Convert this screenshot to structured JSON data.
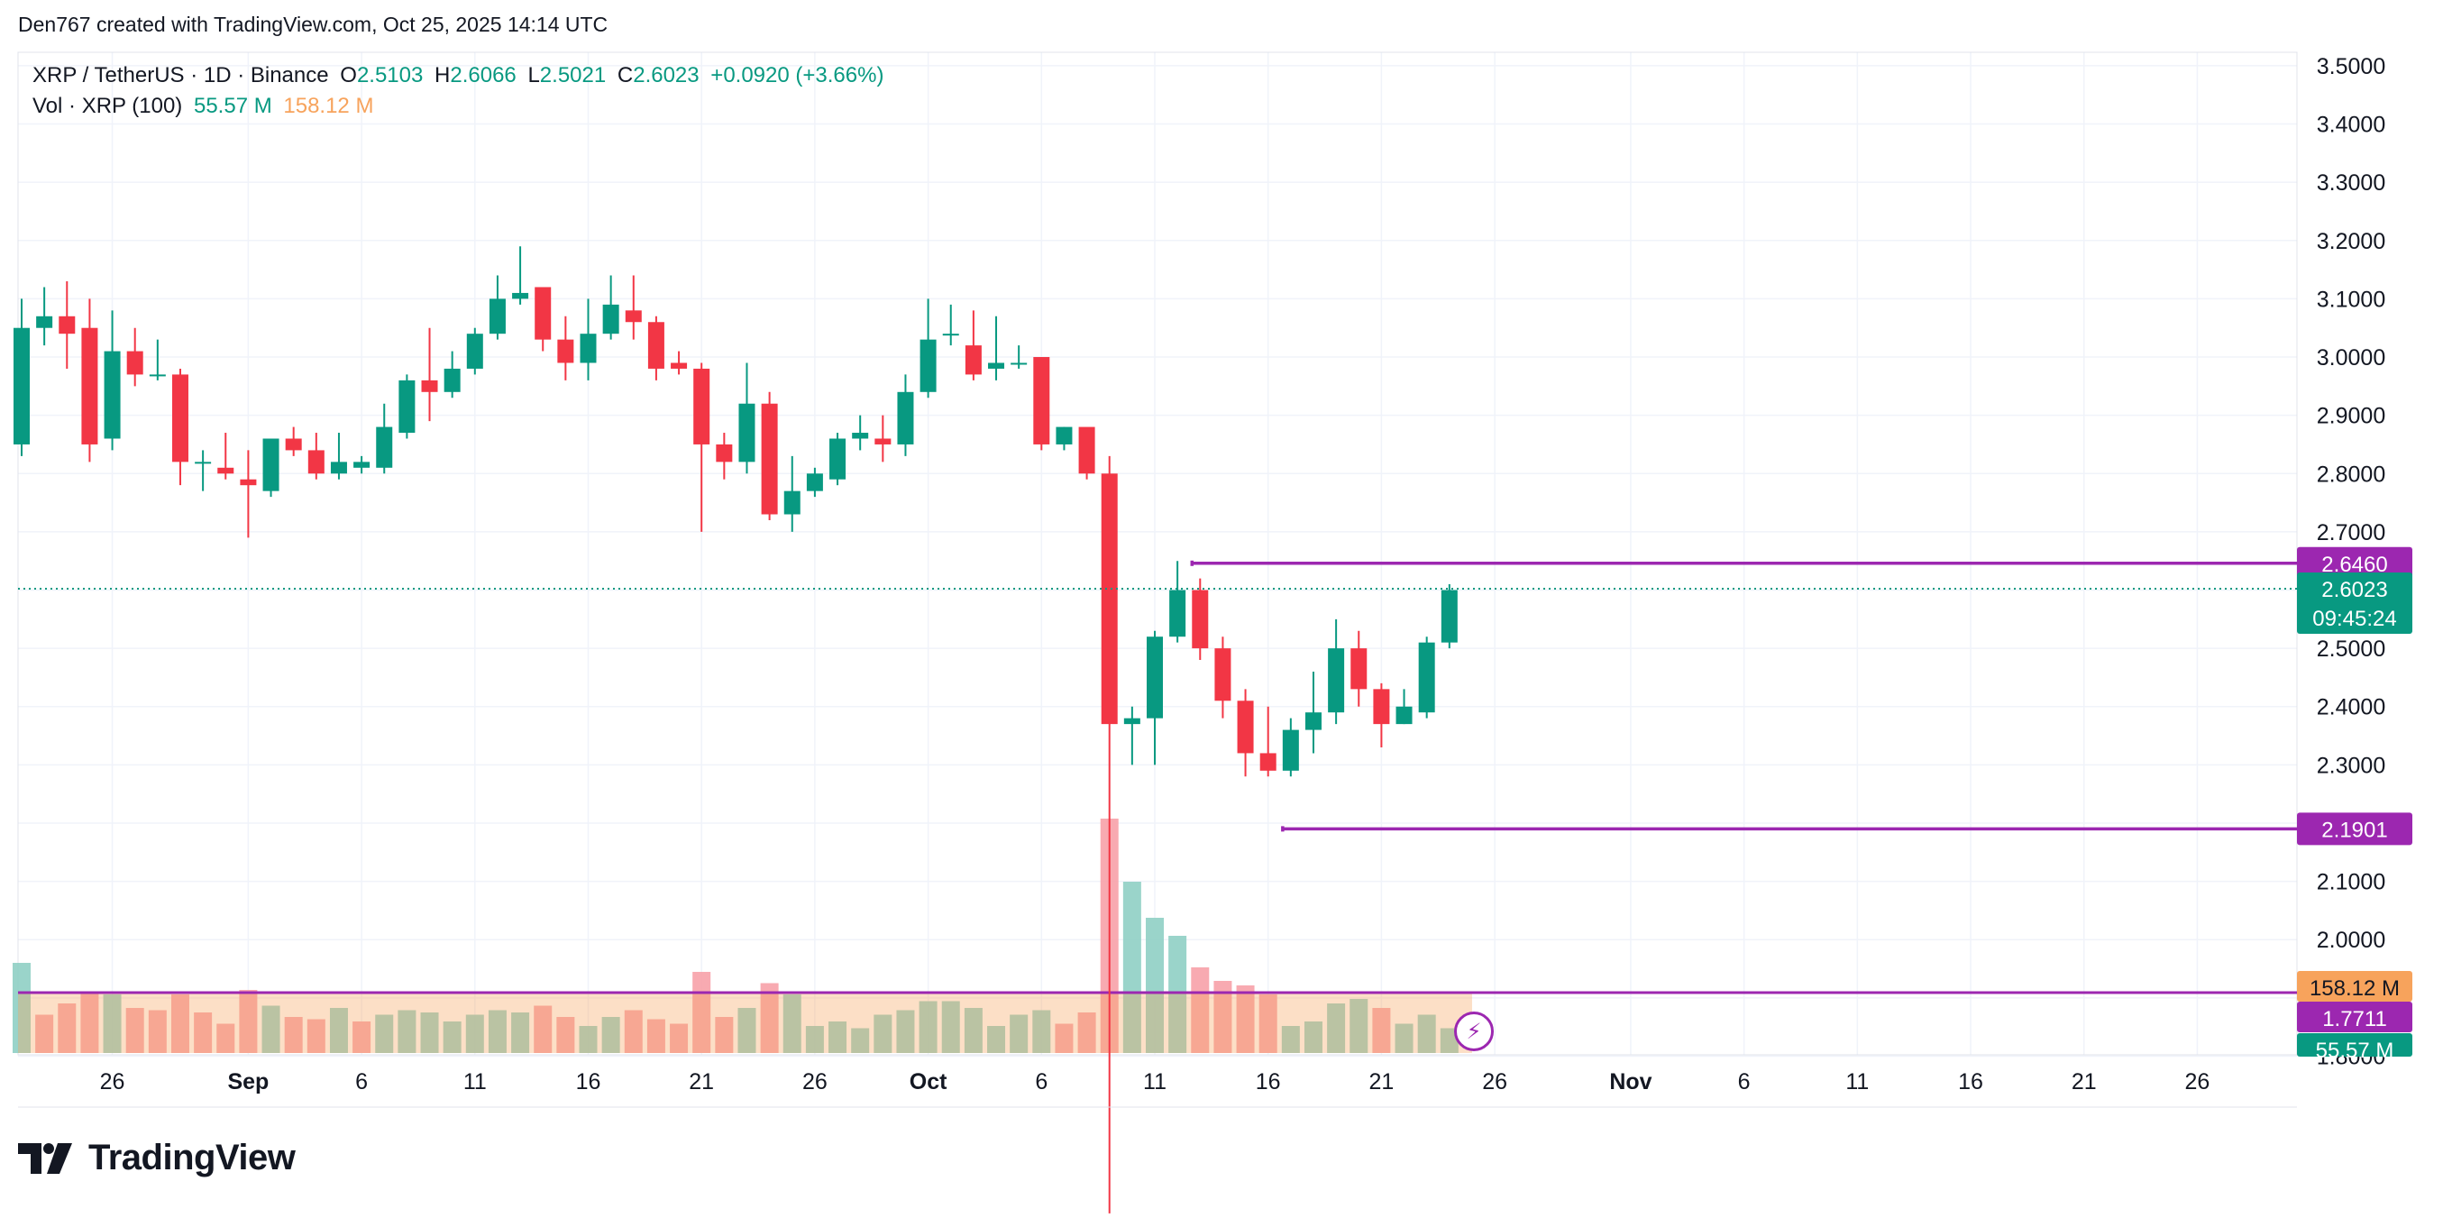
{
  "attribution": "Den767 created with TradingView.com, Oct 25, 2025 14:14 UTC",
  "legend": {
    "symbol": "XRP / TetherUS · 1D · Binance",
    "o_label": "O",
    "o_value": "2.5103",
    "h_label": "H",
    "h_value": "2.6066",
    "l_label": "L",
    "l_value": "2.5021",
    "c_label": "C",
    "c_value": "2.6023",
    "change": "+0.0920 (+3.66%)",
    "vol_label": "Vol · XRP (100)",
    "vol_value": "55.57 M",
    "vol_ma_value": "158.12 M"
  },
  "brand": "TradingView",
  "colors": {
    "up": "#089981",
    "down": "#f23645",
    "level": "#9c27b0",
    "vol_ma": "#f7a35c",
    "grid": "#f0f3fa"
  },
  "chart_data": {
    "type": "candlestick",
    "ylim": [
      1.81,
      3.52
    ],
    "y_ticks": [
      "3.5000",
      "3.4000",
      "3.3000",
      "3.2000",
      "3.1000",
      "3.0000",
      "2.9000",
      "2.8000",
      "2.7000",
      "2.6000",
      "2.5000",
      "2.4000",
      "2.3000",
      "2.2000",
      "2.1000",
      "2.0000",
      "1.9000",
      "1.8000"
    ],
    "x_ticks": [
      {
        "day": 4,
        "label": "26"
      },
      {
        "day": 10,
        "label": "Sep",
        "bold": true
      },
      {
        "day": 15,
        "label": "6"
      },
      {
        "day": 20,
        "label": "11"
      },
      {
        "day": 25,
        "label": "16"
      },
      {
        "day": 30,
        "label": "21"
      },
      {
        "day": 35,
        "label": "26"
      },
      {
        "day": 40,
        "label": "Oct",
        "bold": true
      },
      {
        "day": 45,
        "label": "6"
      },
      {
        "day": 50,
        "label": "11"
      },
      {
        "day": 55,
        "label": "16"
      },
      {
        "day": 60,
        "label": "21"
      },
      {
        "day": 65,
        "label": "26"
      },
      {
        "day": 71,
        "label": "Nov",
        "bold": true
      },
      {
        "day": 76,
        "label": "6"
      },
      {
        "day": 81,
        "label": "11"
      },
      {
        "day": 86,
        "label": "16"
      },
      {
        "day": 91,
        "label": "21"
      },
      {
        "day": 96,
        "label": "26"
      }
    ],
    "candles": [
      [
        2.85,
        3.1,
        3.05,
        2.83
      ],
      [
        3.05,
        3.12,
        3.07,
        3.02
      ],
      [
        3.07,
        3.13,
        3.04,
        2.98
      ],
      [
        3.05,
        3.1,
        2.85,
        2.82
      ],
      [
        2.86,
        3.08,
        3.01,
        2.84
      ],
      [
        3.01,
        3.05,
        2.97,
        2.95
      ],
      [
        2.97,
        3.03,
        2.97,
        2.96
      ],
      [
        2.97,
        2.98,
        2.82,
        2.78
      ],
      [
        2.82,
        2.84,
        2.82,
        2.77
      ],
      [
        2.81,
        2.87,
        2.8,
        2.79
      ],
      [
        2.79,
        2.84,
        2.78,
        2.69
      ],
      [
        2.77,
        2.86,
        2.86,
        2.76
      ],
      [
        2.86,
        2.88,
        2.84,
        2.83
      ],
      [
        2.84,
        2.87,
        2.8,
        2.79
      ],
      [
        2.8,
        2.87,
        2.82,
        2.79
      ],
      [
        2.81,
        2.83,
        2.82,
        2.8
      ],
      [
        2.81,
        2.92,
        2.88,
        2.8
      ],
      [
        2.87,
        2.97,
        2.96,
        2.86
      ],
      [
        2.96,
        3.05,
        2.94,
        2.89
      ],
      [
        2.94,
        3.01,
        2.98,
        2.93
      ],
      [
        2.98,
        3.05,
        3.04,
        2.97
      ],
      [
        3.04,
        3.14,
        3.1,
        3.03
      ],
      [
        3.1,
        3.19,
        3.11,
        3.09
      ],
      [
        3.12,
        3.12,
        3.03,
        3.01
      ],
      [
        3.03,
        3.07,
        2.99,
        2.96
      ],
      [
        2.99,
        3.1,
        3.04,
        2.96
      ],
      [
        3.04,
        3.14,
        3.09,
        3.03
      ],
      [
        3.08,
        3.14,
        3.06,
        3.03
      ],
      [
        3.06,
        3.07,
        2.98,
        2.96
      ],
      [
        2.99,
        3.01,
        2.98,
        2.97
      ],
      [
        2.98,
        2.99,
        2.85,
        2.7
      ],
      [
        2.85,
        2.87,
        2.82,
        2.79
      ],
      [
        2.82,
        2.99,
        2.92,
        2.8
      ],
      [
        2.92,
        2.94,
        2.73,
        2.72
      ],
      [
        2.73,
        2.83,
        2.77,
        2.7
      ],
      [
        2.77,
        2.81,
        2.8,
        2.76
      ],
      [
        2.79,
        2.87,
        2.86,
        2.78
      ],
      [
        2.86,
        2.9,
        2.87,
        2.84
      ],
      [
        2.86,
        2.9,
        2.85,
        2.82
      ],
      [
        2.85,
        2.97,
        2.94,
        2.83
      ],
      [
        2.94,
        3.1,
        3.03,
        2.93
      ],
      [
        3.04,
        3.09,
        3.04,
        3.02
      ],
      [
        3.02,
        3.08,
        2.97,
        2.96
      ],
      [
        2.98,
        3.07,
        2.99,
        2.96
      ],
      [
        2.99,
        3.02,
        2.99,
        2.98
      ],
      [
        3.0,
        3.0,
        2.85,
        2.84
      ],
      [
        2.85,
        2.88,
        2.88,
        2.84
      ],
      [
        2.88,
        2.87,
        2.8,
        2.79
      ],
      [
        2.8,
        2.83,
        2.37,
        1.53
      ],
      [
        2.37,
        2.4,
        2.38,
        2.3
      ],
      [
        2.38,
        2.53,
        2.52,
        2.3
      ],
      [
        2.52,
        2.65,
        2.6,
        2.51
      ],
      [
        2.6,
        2.62,
        2.5,
        2.48
      ],
      [
        2.5,
        2.52,
        2.41,
        2.38
      ],
      [
        2.41,
        2.43,
        2.32,
        2.28
      ],
      [
        2.32,
        2.4,
        2.29,
        2.28
      ],
      [
        2.29,
        2.38,
        2.36,
        2.28
      ],
      [
        2.36,
        2.46,
        2.39,
        2.32
      ],
      [
        2.39,
        2.55,
        2.5,
        2.37
      ],
      [
        2.5,
        2.53,
        2.43,
        2.4
      ],
      [
        2.43,
        2.44,
        2.37,
        2.33
      ],
      [
        2.37,
        2.43,
        2.4,
        2.37
      ],
      [
        2.39,
        2.52,
        2.51,
        2.38
      ],
      [
        2.51,
        2.61,
        2.6,
        2.5
      ]
    ],
    "volume_max": 1000,
    "volumes": [
      [
        200,
        1
      ],
      [
        85,
        0
      ],
      [
        110,
        0
      ],
      [
        135,
        0
      ],
      [
        130,
        1
      ],
      [
        100,
        0
      ],
      [
        95,
        0
      ],
      [
        130,
        0
      ],
      [
        90,
        0
      ],
      [
        65,
        0
      ],
      [
        140,
        0
      ],
      [
        105,
        1
      ],
      [
        80,
        0
      ],
      [
        75,
        0
      ],
      [
        100,
        1
      ],
      [
        70,
        0
      ],
      [
        85,
        1
      ],
      [
        95,
        1
      ],
      [
        90,
        1
      ],
      [
        70,
        1
      ],
      [
        85,
        1
      ],
      [
        95,
        1
      ],
      [
        90,
        1
      ],
      [
        105,
        0
      ],
      [
        80,
        0
      ],
      [
        60,
        1
      ],
      [
        80,
        1
      ],
      [
        95,
        0
      ],
      [
        75,
        0
      ],
      [
        65,
        0
      ],
      [
        180,
        0
      ],
      [
        80,
        0
      ],
      [
        100,
        1
      ],
      [
        155,
        0
      ],
      [
        130,
        1
      ],
      [
        60,
        1
      ],
      [
        70,
        1
      ],
      [
        55,
        1
      ],
      [
        85,
        1
      ],
      [
        95,
        1
      ],
      [
        115,
        1
      ],
      [
        115,
        1
      ],
      [
        100,
        1
      ],
      [
        60,
        1
      ],
      [
        85,
        1
      ],
      [
        95,
        1
      ],
      [
        65,
        0
      ],
      [
        90,
        0
      ],
      [
        520,
        0
      ],
      [
        380,
        1
      ],
      [
        300,
        1
      ],
      [
        260,
        1
      ],
      [
        190,
        0
      ],
      [
        160,
        0
      ],
      [
        150,
        0
      ],
      [
        130,
        0
      ],
      [
        60,
        1
      ],
      [
        70,
        1
      ],
      [
        110,
        1
      ],
      [
        120,
        1
      ],
      [
        100,
        0
      ],
      [
        65,
        1
      ],
      [
        85,
        1
      ],
      [
        55,
        1
      ]
    ],
    "volume_ma_level": 134,
    "levels": [
      {
        "price": 2.646,
        "label": "2.6460",
        "from_day": 52
      },
      {
        "price": 2.1901,
        "label": "2.1901",
        "from_day": 56
      }
    ],
    "last_price": {
      "value": 2.6023,
      "label": "2.6023",
      "countdown": "09:45:24"
    },
    "right_badges": {
      "vol_ma": "158.12 M",
      "level": "1.7711",
      "vol": "55.57 M"
    }
  }
}
